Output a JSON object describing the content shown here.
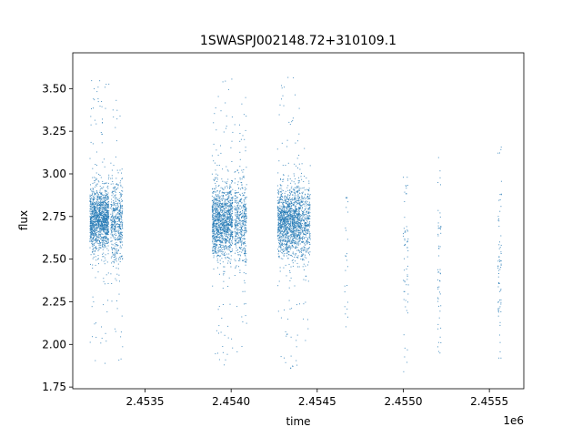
{
  "chart_data": {
    "type": "scatter",
    "title": "1SWASPJ002148.72+310109.1",
    "xlabel": "time",
    "ylabel": "flux",
    "x_offset_label": "1e6",
    "xlim": [
      2453080,
      2455700
    ],
    "ylim": [
      1.74,
      3.71
    ],
    "x_ticks": [
      2453500,
      2454000,
      2454500,
      2455000,
      2455500
    ],
    "x_tick_labels": [
      "2.4535",
      "2.4540",
      "2.4545",
      "2.4550",
      "2.4555"
    ],
    "y_ticks": [
      1.75,
      2.0,
      2.25,
      2.5,
      2.75,
      3.0,
      3.25,
      3.5
    ],
    "y_tick_labels": [
      "1.75",
      "2.00",
      "2.25",
      "2.50",
      "2.75",
      "3.00",
      "3.25",
      "3.50"
    ],
    "grid": false,
    "marker_color": "#1f77b4",
    "clusters": [
      {
        "x_range": [
          2453180,
          2453290
        ],
        "y_center": 2.73,
        "y_spread": 0.09,
        "y_min": 1.87,
        "y_max": 3.55,
        "n": 1400
      },
      {
        "x_range": [
          2453300,
          2453370
        ],
        "y_center": 2.72,
        "y_spread": 0.12,
        "y_min": 1.88,
        "y_max": 3.48,
        "n": 500
      },
      {
        "x_range": [
          2453890,
          2454010
        ],
        "y_center": 2.72,
        "y_spread": 0.1,
        "y_min": 1.86,
        "y_max": 3.56,
        "n": 1300
      },
      {
        "x_range": [
          2454020,
          2454090
        ],
        "y_center": 2.71,
        "y_spread": 0.12,
        "y_min": 1.93,
        "y_max": 3.45,
        "n": 500
      },
      {
        "x_range": [
          2454270,
          2454400
        ],
        "y_center": 2.72,
        "y_spread": 0.1,
        "y_min": 1.84,
        "y_max": 3.62,
        "n": 1400
      },
      {
        "x_range": [
          2454400,
          2454460
        ],
        "y_center": 2.72,
        "y_spread": 0.11,
        "y_min": 1.95,
        "y_max": 3.3,
        "n": 400
      },
      {
        "x_range": [
          2454660,
          2454680
        ],
        "y_center": 2.6,
        "y_spread": 0.25,
        "y_min": 1.83,
        "y_max": 2.86,
        "n": 25
      },
      {
        "x_range": [
          2455000,
          2455030
        ],
        "y_center": 2.5,
        "y_spread": 0.25,
        "y_min": 1.84,
        "y_max": 2.98,
        "n": 60
      },
      {
        "x_range": [
          2455200,
          2455220
        ],
        "y_center": 2.45,
        "y_spread": 0.25,
        "y_min": 1.95,
        "y_max": 3.13,
        "n": 55
      },
      {
        "x_range": [
          2455550,
          2455570
        ],
        "y_center": 2.55,
        "y_spread": 0.3,
        "y_min": 1.92,
        "y_max": 3.16,
        "n": 70
      }
    ]
  }
}
